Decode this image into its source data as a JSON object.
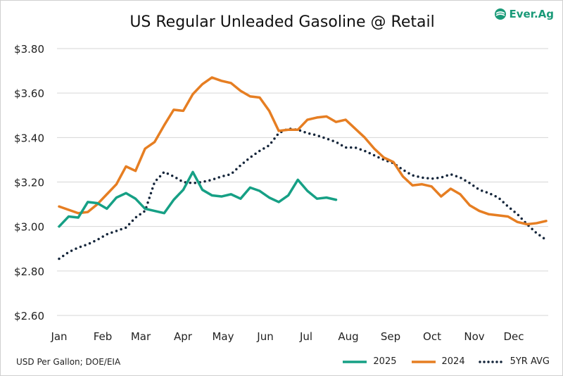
{
  "chart_data": {
    "type": "line",
    "title": "US Regular Unleaded Gasoline @ Retail",
    "xlabel": "",
    "ylabel": "",
    "x_unit": "week of year",
    "x_tick_labels": [
      "Jan",
      "Feb",
      "Mar",
      "Apr",
      "May",
      "Jun",
      "Jul",
      "Aug",
      "Sep",
      "Oct",
      "Nov",
      "Dec"
    ],
    "y_tick_labels": [
      "$2.60",
      "$2.80",
      "$3.00",
      "$3.20",
      "$3.40",
      "$3.60",
      "$3.80"
    ],
    "ylim": [
      2.6,
      3.8
    ],
    "grid": "horizontal",
    "legend_placement": "bottom-right",
    "series": [
      {
        "name": "2025",
        "color": "#16a085",
        "style": "solid",
        "values": [
          3.0,
          3.045,
          3.04,
          3.11,
          3.105,
          3.08,
          3.13,
          3.15,
          3.125,
          3.08,
          3.07,
          3.06,
          3.12,
          3.165,
          3.245,
          3.165,
          3.14,
          3.135,
          3.145,
          3.125,
          3.175,
          3.16,
          3.13,
          3.11,
          3.14,
          3.21,
          3.16,
          3.125,
          3.13,
          3.12
        ]
      },
      {
        "name": "2024",
        "color": "#e67e22",
        "style": "solid",
        "values": [
          3.09,
          3.075,
          3.06,
          3.065,
          3.1,
          3.145,
          3.19,
          3.27,
          3.25,
          3.35,
          3.38,
          3.455,
          3.525,
          3.52,
          3.595,
          3.64,
          3.67,
          3.655,
          3.645,
          3.61,
          3.585,
          3.58,
          3.52,
          3.43,
          3.435,
          3.435,
          3.48,
          3.49,
          3.495,
          3.47,
          3.48,
          3.44,
          3.4,
          3.35,
          3.31,
          3.29,
          3.225,
          3.185,
          3.19,
          3.18,
          3.135,
          3.17,
          3.145,
          3.095,
          3.07,
          3.055,
          3.05,
          3.045,
          3.02,
          3.01,
          3.015,
          3.025
        ]
      },
      {
        "name": "5YR AVG",
        "color": "#14253a",
        "style": "dotted",
        "values": [
          2.855,
          2.885,
          2.905,
          2.92,
          2.94,
          2.965,
          2.98,
          2.995,
          3.04,
          3.07,
          3.2,
          3.245,
          3.225,
          3.2,
          3.195,
          3.2,
          3.21,
          3.225,
          3.235,
          3.275,
          3.31,
          3.34,
          3.365,
          3.42,
          3.44,
          3.435,
          3.42,
          3.41,
          3.395,
          3.38,
          3.355,
          3.355,
          3.34,
          3.32,
          3.3,
          3.285,
          3.255,
          3.23,
          3.22,
          3.215,
          3.22,
          3.235,
          3.22,
          3.195,
          3.165,
          3.15,
          3.13,
          3.09,
          3.055,
          3.01,
          2.97,
          2.94
        ]
      }
    ]
  },
  "footnote": "USD Per Gallon; DOE/EIA",
  "logo": "Ever.Ag"
}
